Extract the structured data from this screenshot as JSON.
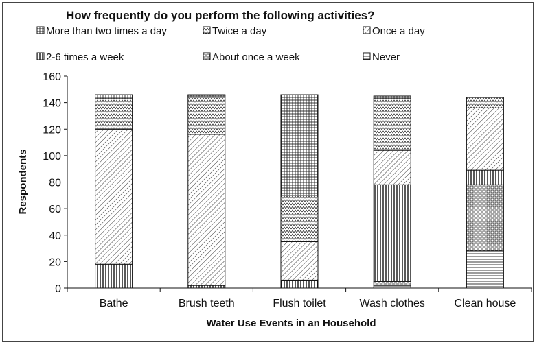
{
  "chart_data": {
    "type": "bar",
    "stacked": true,
    "title": "How frequently do you perform the following activities?",
    "xlabel": "Water Use Events in an Household",
    "ylabel": "Respondents",
    "ylim": [
      0,
      160
    ],
    "yticks": [
      0,
      20,
      40,
      60,
      80,
      100,
      120,
      140,
      160
    ],
    "categories": [
      "Bathe",
      "Brush teeth",
      "Flush toilet",
      "Wash clothes",
      "Clean house"
    ],
    "legend_position": "top",
    "series": [
      {
        "name": "Never",
        "pattern": "horizontal-lines",
        "values": [
          0,
          0,
          0,
          2,
          28
        ]
      },
      {
        "name": "About once a week",
        "pattern": "grid",
        "values": [
          0,
          0,
          0,
          3,
          50
        ]
      },
      {
        "name": "2-6 times a week",
        "pattern": "vertical-lines",
        "values": [
          18,
          2,
          6,
          73,
          11
        ]
      },
      {
        "name": "Once a day",
        "pattern": "diagonal-lines",
        "values": [
          102,
          114,
          29,
          26,
          47
        ]
      },
      {
        "name": "Twice a day",
        "pattern": "zigzag",
        "values": [
          23,
          29,
          35,
          39,
          8
        ]
      },
      {
        "name": "More than two times a day",
        "pattern": "dense-grid",
        "values": [
          3,
          1,
          76,
          2,
          0
        ]
      }
    ],
    "legend_order": [
      "More than two times a day",
      "Twice a day",
      "Once a day",
      "2-6 times a week",
      "About once a week",
      "Never"
    ]
  }
}
